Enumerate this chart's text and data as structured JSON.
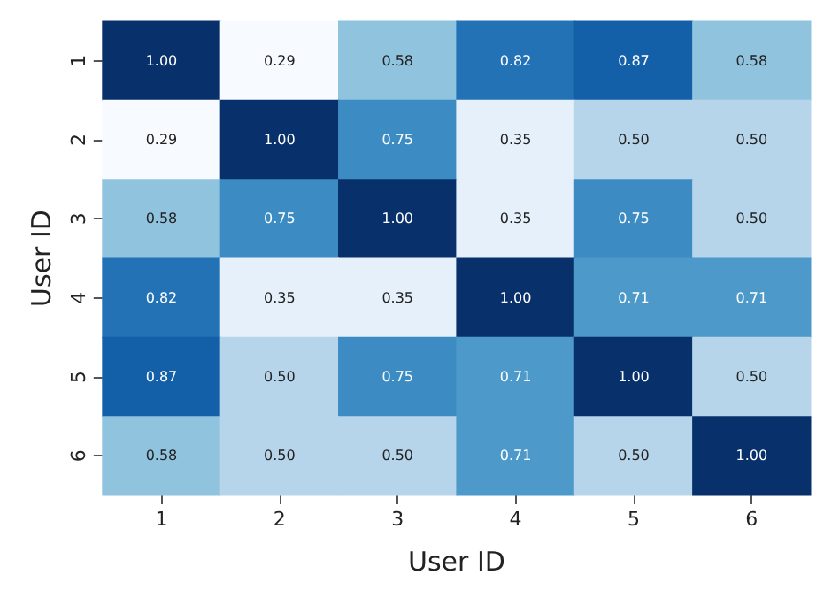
{
  "chart_data": {
    "type": "heatmap",
    "xlabel": "User ID",
    "ylabel": "User ID",
    "categories": [
      "1",
      "2",
      "3",
      "4",
      "5",
      "6"
    ],
    "y_categories": [
      "1",
      "2",
      "3",
      "4",
      "5",
      "6"
    ],
    "cells": [
      [
        1.0,
        0.29,
        0.58,
        0.82,
        0.87,
        0.58
      ],
      [
        0.29,
        1.0,
        0.75,
        0.35,
        0.5,
        0.5
      ],
      [
        0.58,
        0.75,
        1.0,
        0.35,
        0.75,
        0.5
      ],
      [
        0.82,
        0.35,
        0.35,
        1.0,
        0.71,
        0.71
      ],
      [
        0.87,
        0.5,
        0.75,
        0.71,
        1.0,
        0.5
      ],
      [
        0.58,
        0.5,
        0.5,
        0.71,
        0.5,
        1.0
      ]
    ],
    "cell_labels": [
      [
        "1.00",
        "0.29",
        "0.58",
        "0.82",
        "0.87",
        "0.58"
      ],
      [
        "0.29",
        "1.00",
        "0.75",
        "0.35",
        "0.50",
        "0.50"
      ],
      [
        "0.58",
        "0.75",
        "1.00",
        "0.35",
        "0.75",
        "0.50"
      ],
      [
        "0.82",
        "0.35",
        "0.35",
        "1.00",
        "0.71",
        "0.71"
      ],
      [
        "0.87",
        "0.50",
        "0.75",
        "0.71",
        "1.00",
        "0.50"
      ],
      [
        "0.58",
        "0.50",
        "0.50",
        "0.71",
        "0.50",
        "1.00"
      ]
    ]
  }
}
